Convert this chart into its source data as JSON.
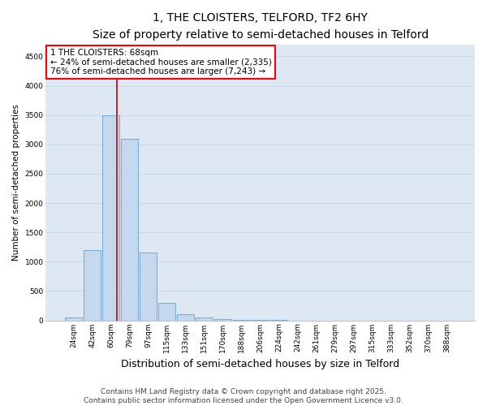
{
  "title_line1": "1, THE CLOISTERS, TELFORD, TF2 6HY",
  "title_line2": "Size of property relative to semi-detached houses in Telford",
  "xlabel": "Distribution of semi-detached houses by size in Telford",
  "ylabel": "Number of semi-detached properties",
  "categories": [
    "24sqm",
    "42sqm",
    "60sqm",
    "79sqm",
    "97sqm",
    "115sqm",
    "133sqm",
    "151sqm",
    "170sqm",
    "188sqm",
    "206sqm",
    "224sqm",
    "242sqm",
    "261sqm",
    "279sqm",
    "297sqm",
    "315sqm",
    "333sqm",
    "352sqm",
    "370sqm",
    "388sqm"
  ],
  "values": [
    50,
    1200,
    3500,
    3100,
    1150,
    300,
    100,
    50,
    20,
    5,
    2,
    1,
    0,
    0,
    0,
    0,
    0,
    0,
    0,
    0,
    0
  ],
  "bar_color": "#c5d8ee",
  "bar_edge_color": "#7bafd4",
  "vline_color": "#cc0000",
  "annotation_box_text": "1 THE CLOISTERS: 68sqm\n← 24% of semi-detached houses are smaller (2,335)\n76% of semi-detached houses are larger (7,243) →",
  "ylim": [
    0,
    4700
  ],
  "yticks": [
    0,
    500,
    1000,
    1500,
    2000,
    2500,
    3000,
    3500,
    4000,
    4500
  ],
  "grid_color": "#c8d8e8",
  "background_color": "#dde8f3",
  "footer_line1": "Contains HM Land Registry data © Crown copyright and database right 2025.",
  "footer_line2": "Contains public sector information licensed under the Open Government Licence v3.0.",
  "title_fontsize": 10,
  "subtitle_fontsize": 8.5,
  "xlabel_fontsize": 9,
  "ylabel_fontsize": 7.5,
  "tick_fontsize": 6.5,
  "annotation_fontsize": 7.5,
  "footer_fontsize": 6.5
}
